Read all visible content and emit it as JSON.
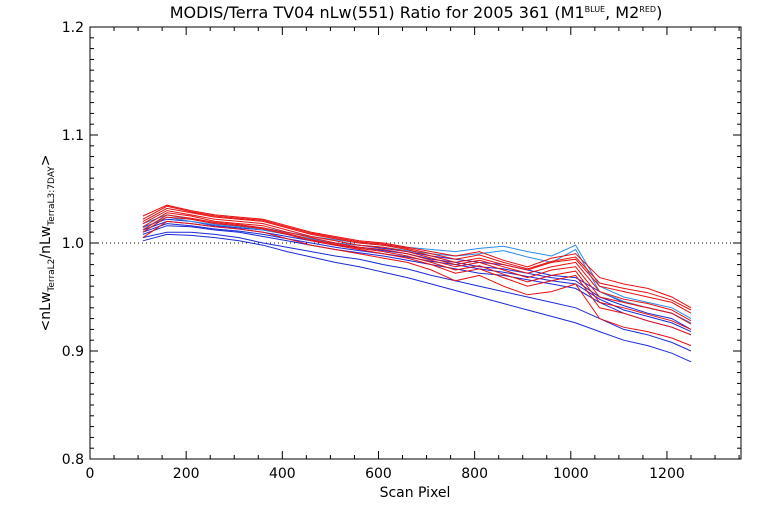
{
  "chart_data": {
    "type": "line",
    "title_main": "MODIS/Terra TV04 nLw(551) Ratio for 2005 361 (M1",
    "title_sup1": "BLUE",
    "title_mid": ", M2",
    "title_sup2": "RED",
    "title_end": ")",
    "xlabel": "Scan Pixel",
    "ylabel_parts": {
      "open": "<nLw",
      "sub1": "TerraL2",
      "slash": "/nLw",
      "sub2": "TerraL3:7DAY",
      "close": ">"
    },
    "xlim": [
      0,
      1354
    ],
    "ylim": [
      0.8,
      1.2
    ],
    "xticks": [
      0,
      200,
      400,
      600,
      800,
      1000,
      1200
    ],
    "yticks": [
      0.8,
      0.9,
      1.0,
      1.1,
      1.2
    ],
    "ytick_labels": [
      "0.8",
      "0.9",
      "1.0",
      "1.1",
      "1.2"
    ],
    "reference_line": 1.0,
    "grid": false,
    "colors": {
      "blue": "#1a2bd8",
      "lightblue": "#2a8ee8",
      "red": "#e81010",
      "axis": "#000000"
    },
    "x": [
      110,
      160,
      210,
      260,
      310,
      360,
      410,
      460,
      510,
      560,
      610,
      660,
      710,
      760,
      810,
      860,
      910,
      960,
      1010,
      1060,
      1110,
      1160,
      1210,
      1250
    ],
    "series": [
      {
        "color": "blue",
        "values": [
          1.015,
          1.022,
          1.02,
          1.016,
          1.014,
          1.012,
          1.008,
          1.004,
          1.0,
          0.998,
          0.995,
          0.992,
          0.988,
          0.985,
          0.982,
          0.98,
          0.975,
          0.97,
          0.968,
          0.955,
          0.945,
          0.94,
          0.935,
          0.925
        ]
      },
      {
        "color": "blue",
        "values": [
          1.012,
          1.02,
          1.018,
          1.015,
          1.013,
          1.01,
          1.006,
          1.002,
          0.998,
          0.996,
          0.993,
          0.99,
          0.985,
          0.982,
          0.978,
          0.976,
          0.972,
          0.968,
          0.965,
          0.95,
          0.942,
          0.935,
          0.93,
          0.92
        ]
      },
      {
        "color": "blue",
        "values": [
          1.008,
          1.016,
          1.015,
          1.012,
          1.01,
          1.006,
          1.002,
          0.998,
          0.994,
          0.991,
          0.988,
          0.984,
          0.98,
          0.976,
          0.972,
          0.97,
          0.966,
          0.962,
          0.958,
          0.945,
          0.935,
          0.928,
          0.922,
          0.915
        ]
      },
      {
        "color": "blue",
        "values": [
          1.005,
          1.01,
          1.01,
          1.008,
          1.005,
          1.0,
          0.996,
          0.992,
          0.988,
          0.985,
          0.98,
          0.976,
          0.97,
          0.965,
          0.96,
          0.955,
          0.95,
          0.945,
          0.94,
          0.93,
          0.92,
          0.915,
          0.908,
          0.9
        ]
      },
      {
        "color": "blue",
        "values": [
          1.01,
          1.018,
          1.016,
          1.013,
          1.011,
          1.008,
          1.004,
          1.0,
          0.996,
          0.993,
          0.99,
          0.987,
          0.983,
          0.98,
          0.976,
          0.973,
          0.969,
          0.965,
          0.962,
          0.948,
          0.938,
          0.932,
          0.926,
          0.918
        ]
      },
      {
        "color": "blue",
        "values": [
          1.002,
          1.008,
          1.007,
          1.005,
          1.002,
          0.998,
          0.992,
          0.987,
          0.982,
          0.978,
          0.973,
          0.968,
          0.962,
          0.956,
          0.95,
          0.944,
          0.938,
          0.932,
          0.926,
          0.918,
          0.91,
          0.905,
          0.898,
          0.89
        ]
      },
      {
        "color": "lightblue",
        "values": [
          1.018,
          1.026,
          1.022,
          1.018,
          1.016,
          1.014,
          1.01,
          1.006,
          1.003,
          1.0,
          0.998,
          0.996,
          0.994,
          0.992,
          0.995,
          0.997,
          0.992,
          0.988,
          0.998,
          0.96,
          0.95,
          0.945,
          0.94,
          0.93
        ]
      },
      {
        "color": "lightblue",
        "values": [
          1.014,
          1.024,
          1.02,
          1.017,
          1.015,
          1.012,
          1.008,
          1.004,
          1.0,
          0.998,
          0.996,
          0.993,
          0.99,
          0.988,
          0.99,
          0.993,
          0.987,
          0.982,
          0.994,
          0.955,
          0.946,
          0.94,
          0.935,
          0.926
        ]
      },
      {
        "color": "red",
        "values": [
          1.02,
          1.032,
          1.028,
          1.024,
          1.022,
          1.02,
          1.014,
          1.008,
          1.004,
          1.0,
          0.998,
          0.994,
          0.988,
          0.982,
          0.986,
          0.98,
          0.975,
          0.982,
          0.985,
          0.96,
          0.955,
          0.95,
          0.945,
          0.935
        ]
      },
      {
        "color": "red",
        "values": [
          1.025,
          1.035,
          1.03,
          1.026,
          1.024,
          1.022,
          1.016,
          1.01,
          1.006,
          1.002,
          1.0,
          0.996,
          0.992,
          0.988,
          0.992,
          0.984,
          0.978,
          0.986,
          0.99,
          0.968,
          0.962,
          0.958,
          0.95,
          0.94
        ]
      },
      {
        "color": "red",
        "values": [
          1.015,
          1.028,
          1.025,
          1.02,
          1.018,
          1.016,
          1.01,
          1.005,
          1.0,
          0.996,
          0.994,
          0.99,
          0.984,
          0.978,
          0.982,
          0.975,
          0.968,
          0.975,
          0.978,
          0.95,
          0.945,
          0.94,
          0.935,
          0.925
        ]
      },
      {
        "color": "red",
        "values": [
          1.01,
          1.024,
          1.022,
          1.018,
          1.016,
          1.013,
          1.008,
          1.002,
          0.998,
          0.994,
          0.99,
          0.986,
          0.98,
          0.972,
          0.976,
          0.968,
          0.96,
          0.965,
          0.97,
          0.94,
          0.935,
          0.928,
          0.922,
          0.915
        ]
      },
      {
        "color": "red",
        "values": [
          1.005,
          1.02,
          1.018,
          1.015,
          1.013,
          1.01,
          1.004,
          0.998,
          0.994,
          0.99,
          0.986,
          0.982,
          0.975,
          0.965,
          0.97,
          0.96,
          0.952,
          0.955,
          0.962,
          0.93,
          0.922,
          0.918,
          0.912,
          0.905
        ]
      },
      {
        "color": "red",
        "values": [
          1.018,
          1.03,
          1.026,
          1.022,
          1.02,
          1.018,
          1.012,
          1.006,
          1.002,
          0.998,
          0.996,
          0.992,
          0.986,
          0.98,
          0.984,
          0.978,
          0.972,
          0.978,
          0.982,
          0.955,
          0.948,
          0.944,
          0.938,
          0.928
        ]
      },
      {
        "color": "red",
        "values": [
          1.022,
          1.034,
          1.029,
          1.025,
          1.023,
          1.021,
          1.015,
          1.009,
          1.005,
          1.001,
          0.999,
          0.995,
          0.99,
          0.985,
          0.989,
          0.982,
          0.976,
          0.983,
          0.987,
          0.963,
          0.958,
          0.954,
          0.947,
          0.938
        ]
      },
      {
        "color": "red",
        "values": [
          1.012,
          1.026,
          1.023,
          1.019,
          1.017,
          1.014,
          1.009,
          1.003,
          0.999,
          0.995,
          0.992,
          0.988,
          0.982,
          0.975,
          0.979,
          0.971,
          0.964,
          0.97,
          0.974,
          0.945,
          0.94,
          0.934,
          0.928,
          0.92
        ]
      }
    ]
  }
}
